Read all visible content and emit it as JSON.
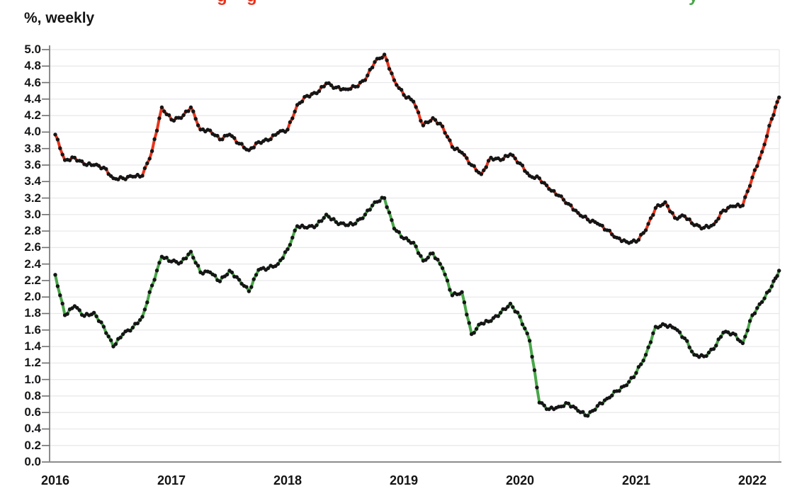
{
  "header": {
    "units_label": "%, weekly",
    "clipped_title": {
      "note": "chart title is cut off at top edge; only letter descenders are visible",
      "red_fragment_1": "g",
      "red_fragment_2": "g",
      "green_fragment": "y",
      "red_color": "#e8341c",
      "green_color": "#48a648"
    }
  },
  "colors": {
    "background": "#ffffff",
    "red_line": "#e8341c",
    "green_line": "#48a648",
    "marker": "#151515",
    "gridline": "#e7e7ea",
    "axis": "#6e6e6e",
    "baseline": "#8c8c8c",
    "label_text": "#17171a"
  },
  "chart_data": {
    "type": "line",
    "subtitle": "%, weekly",
    "legend": "none",
    "grid": "horizontal",
    "marker_style": "small black dots at every weekly observation",
    "x_axis": {
      "min": 2016,
      "max": 2022.3,
      "tick_labels": [
        "2016",
        "2017",
        "2018",
        "2019",
        "2020",
        "2021",
        "2022"
      ]
    },
    "y_axis": {
      "min": 0.0,
      "max": 5.0,
      "step": 0.2,
      "tick_labels": [
        "5.0",
        "4.8",
        "4.6",
        "4.4",
        "4.2",
        "4.0",
        "3.8",
        "3.6",
        "3.4",
        "3.2",
        "3.0",
        "2.8",
        "2.6",
        "2.4",
        "2.2",
        "2.0",
        "1.8",
        "1.6",
        "1.4",
        "1.2",
        "1.0",
        "0.8",
        "0.6",
        "0.4",
        "0.2",
        "0.0"
      ]
    },
    "x": [
      2016,
      2016.083,
      2016.167,
      2016.25,
      2016.333,
      2016.417,
      2016.5,
      2016.583,
      2016.667,
      2016.75,
      2016.833,
      2016.917,
      2017,
      2017.083,
      2017.167,
      2017.25,
      2017.333,
      2017.417,
      2017.5,
      2017.583,
      2017.667,
      2017.75,
      2017.833,
      2017.917,
      2018,
      2018.083,
      2018.167,
      2018.25,
      2018.333,
      2018.417,
      2018.5,
      2018.583,
      2018.667,
      2018.75,
      2018.833,
      2018.917,
      2019,
      2019.083,
      2019.167,
      2019.25,
      2019.333,
      2019.417,
      2019.5,
      2019.583,
      2019.667,
      2019.75,
      2019.833,
      2019.917,
      2020,
      2020.083,
      2020.167,
      2020.25,
      2020.333,
      2020.417,
      2020.5,
      2020.583,
      2020.667,
      2020.75,
      2020.833,
      2020.917,
      2021,
      2021.083,
      2021.167,
      2021.25,
      2021.333,
      2021.417,
      2021.5,
      2021.583,
      2021.667,
      2021.75,
      2021.833,
      2021.917,
      2022,
      2022.083,
      2022.167,
      2022.23
    ],
    "series": [
      {
        "name": "red-upper-series",
        "color": "#e8341c",
        "values": [
          3.97,
          3.66,
          3.69,
          3.61,
          3.6,
          3.57,
          3.44,
          3.44,
          3.46,
          3.47,
          3.77,
          4.3,
          4.15,
          4.17,
          4.3,
          4.03,
          4.02,
          3.91,
          3.97,
          3.86,
          3.78,
          3.88,
          3.9,
          3.99,
          4.03,
          4.33,
          4.44,
          4.47,
          4.59,
          4.54,
          4.52,
          4.55,
          4.63,
          4.85,
          4.94,
          4.63,
          4.45,
          4.37,
          4.08,
          4.17,
          4.07,
          3.82,
          3.75,
          3.6,
          3.49,
          3.69,
          3.66,
          3.73,
          3.62,
          3.47,
          3.44,
          3.31,
          3.23,
          3.13,
          3.02,
          2.94,
          2.89,
          2.81,
          2.72,
          2.67,
          2.67,
          2.81,
          3.08,
          3.15,
          2.96,
          2.98,
          2.87,
          2.84,
          2.88,
          3.05,
          3.1,
          3.11,
          3.45,
          3.76,
          4.16,
          4.42
        ]
      },
      {
        "name": "green-lower-series",
        "color": "#48a648",
        "values": [
          2.27,
          1.78,
          1.89,
          1.77,
          1.81,
          1.64,
          1.4,
          1.55,
          1.63,
          1.76,
          2.14,
          2.49,
          2.43,
          2.42,
          2.55,
          2.3,
          2.3,
          2.19,
          2.32,
          2.21,
          2.07,
          2.33,
          2.35,
          2.4,
          2.58,
          2.86,
          2.84,
          2.87,
          3.0,
          2.91,
          2.87,
          2.89,
          3.0,
          3.15,
          3.2,
          2.83,
          2.71,
          2.66,
          2.44,
          2.53,
          2.35,
          2.02,
          2.06,
          1.55,
          1.68,
          1.71,
          1.81,
          1.92,
          1.76,
          1.47,
          0.72,
          0.64,
          0.67,
          0.71,
          0.62,
          0.56,
          0.68,
          0.77,
          0.86,
          0.93,
          1.08,
          1.3,
          1.64,
          1.66,
          1.62,
          1.5,
          1.3,
          1.28,
          1.37,
          1.57,
          1.56,
          1.44,
          1.78,
          1.94,
          2.13,
          2.32
        ]
      }
    ]
  }
}
